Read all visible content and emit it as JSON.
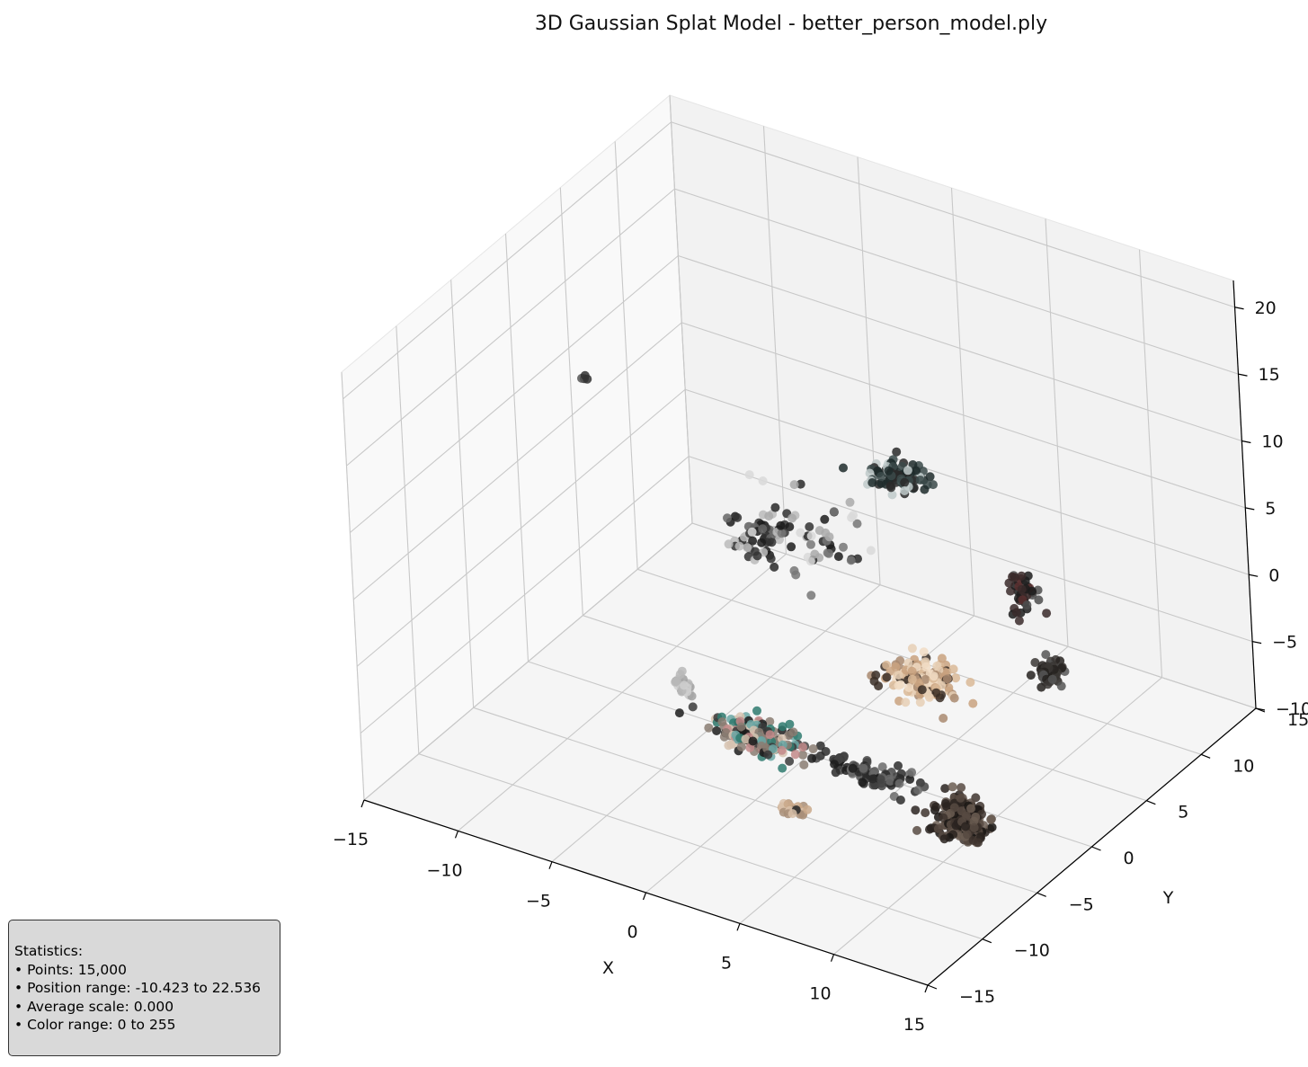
{
  "chart_data": {
    "type": "scatter",
    "projection": "3d",
    "title": "3D Gaussian Splat Model - better_person_model.ply",
    "xlabel": "X",
    "ylabel": "Y",
    "zlabel": "",
    "xlim": [
      -15,
      15
    ],
    "ylim": [
      -15,
      15
    ],
    "zlim": [
      -10,
      22
    ],
    "xticks": [
      "−15",
      "−10",
      "−5",
      "0",
      "5",
      "10",
      "15"
    ],
    "yticks": [
      "−15",
      "−10",
      "−5",
      "0",
      "5",
      "10",
      "15"
    ],
    "zticks": [
      "−10",
      "−5",
      "0",
      "5",
      "10",
      "15",
      "20"
    ],
    "grid": true,
    "clusters": [
      {
        "x": -1.5,
        "y": -2.0,
        "z": -8.0,
        "spread": [
          2.2,
          1.0,
          0.8
        ],
        "count": 170,
        "colors": [
          "#3a3a3a",
          "#c28a8a",
          "#2f7a6e",
          "#6aa7a5",
          "#1c1c1c",
          "#8a7d72",
          "#d7c3b0"
        ]
      },
      {
        "x": 4.0,
        "y": 3.5,
        "z": -5.0,
        "spread": [
          1.8,
          1.2,
          1.0
        ],
        "count": 200,
        "colors": [
          "#d9b896",
          "#c9a27f",
          "#a98a70",
          "#e6cfb5",
          "#3a2e26",
          "#f1dcc4"
        ]
      },
      {
        "x": 9.5,
        "y": -2.5,
        "z": -9.5,
        "spread": [
          1.3,
          1.0,
          2.4
        ],
        "count": 320,
        "colors": [
          "#2a2320",
          "#3e342e",
          "#574a42",
          "#1a1614",
          "#6b5d52"
        ]
      },
      {
        "x": 9.5,
        "y": 6.0,
        "z": -3.5,
        "spread": [
          0.6,
          0.6,
          0.8
        ],
        "count": 50,
        "colors": [
          "#3a3634",
          "#555",
          "#262220"
        ]
      },
      {
        "x": 4.0,
        "y": -1.5,
        "z": -8.5,
        "spread": [
          2.4,
          0.7,
          0.6
        ],
        "count": 90,
        "colors": [
          "#2b2b2b",
          "#444",
          "#6a6a6a",
          "#1c1c1c"
        ]
      },
      {
        "x": 2.0,
        "y": -5.0,
        "z": -10.0,
        "spread": [
          0.7,
          0.5,
          0.6
        ],
        "count": 45,
        "colors": [
          "#c9a88a",
          "#a88e78",
          "#2a2a2a",
          "#d8c0a8"
        ]
      },
      {
        "x": 0.5,
        "y": 8.0,
        "z": 5.5,
        "spread": [
          1.6,
          1.2,
          0.7
        ],
        "count": 90,
        "colors": [
          "#1f2b2b",
          "#3b4a4a",
          "#bfcaca",
          "#2a2a2a"
        ]
      },
      {
        "x": -5.0,
        "y": 5.0,
        "z": 0.5,
        "spread": [
          1.6,
          2.2,
          1.0
        ],
        "count": 60,
        "colors": [
          "#1c1c1c",
          "#333",
          "#666",
          "#bbbbbb"
        ]
      },
      {
        "x": -6.0,
        "y": -1.0,
        "z": -7.0,
        "spread": [
          0.4,
          0.6,
          0.8
        ],
        "count": 30,
        "colors": [
          "#b8b8b8",
          "#cfcfcf",
          "#a0a0a0"
        ]
      },
      {
        "x": 8.0,
        "y": 6.5,
        "z": 1.5,
        "spread": [
          0.7,
          0.6,
          2.0
        ],
        "count": 40,
        "colors": [
          "#1c1c1c",
          "#3a2a2a",
          "#4d4d4d",
          "#5a3030"
        ]
      },
      {
        "x": -10.5,
        "y": -1.0,
        "z": 14.0,
        "spread": [
          0.2,
          0.2,
          0.3
        ],
        "count": 4,
        "colors": [
          "#333",
          "#555"
        ]
      },
      {
        "x": -3.0,
        "y": 6.0,
        "z": 0.5,
        "spread": [
          3.0,
          3.0,
          2.5
        ],
        "count": 50,
        "colors": [
          "#2a2a2a",
          "#777",
          "#aaa",
          "#d9d9d9",
          "#1c1c1c"
        ]
      }
    ]
  },
  "stats": {
    "heading": "Statistics:",
    "lines": [
      "• Points: 15,000",
      "• Position range: -10.423 to 22.536",
      "• Average scale: 0.000",
      "• Color range: 0 to 255"
    ]
  }
}
